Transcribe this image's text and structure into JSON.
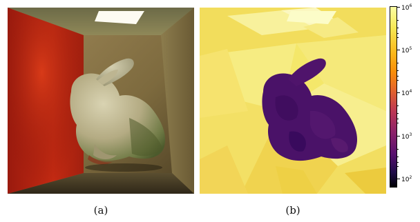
{
  "figure": {
    "captions": [
      "(a)",
      "(b)"
    ],
    "colorbar": {
      "scale": "log",
      "colormap": "inferno",
      "ticks": [
        {
          "base": "10",
          "exp": "6"
        },
        {
          "base": "10",
          "exp": "5"
        },
        {
          "base": "10",
          "exp": "4"
        },
        {
          "base": "10",
          "exp": "3"
        },
        {
          "base": "10",
          "exp": "2"
        }
      ]
    }
  }
}
